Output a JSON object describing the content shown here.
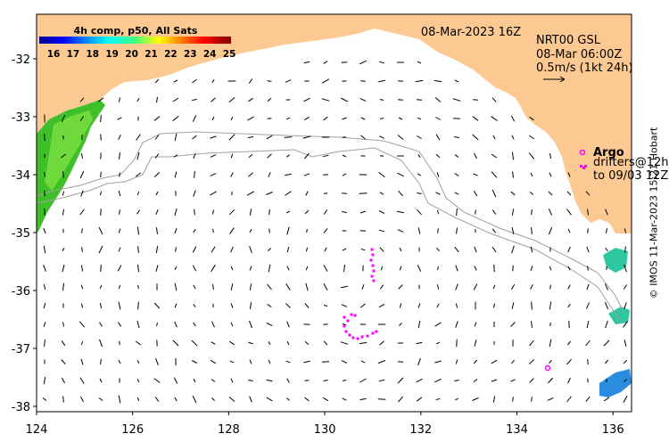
{
  "colorbar": {
    "title": "4h comp, p50, All Sats",
    "ticks": [
      "16",
      "17",
      "18",
      "19",
      "20",
      "21",
      "22",
      "23",
      "24",
      "25"
    ]
  },
  "header": {
    "date": "08-Mar-2023 16Z",
    "product": "NRT00 GSL",
    "product_time": "08-Mar 06:00Z",
    "scale_label": "0.5m/s (1kt 24h)"
  },
  "legend": {
    "argo": "Argo",
    "drifters_line1": "drifters@12h",
    "drifters_line2": "to 09/03 12Z"
  },
  "axes": {
    "x_ticks": [
      "124",
      "126",
      "128",
      "130",
      "132",
      "134",
      "136"
    ],
    "y_ticks": [
      "-32",
      "-33",
      "-34",
      "-35",
      "-36",
      "-37",
      "-38"
    ]
  },
  "credit": "© IMOS 11-Mar-2023 15:21 Hobart",
  "colors": {
    "land": "#fdc992",
    "arrow": "#000000",
    "drifter": "#ff00ff",
    "bathymetry": "#a0a0a0"
  }
}
